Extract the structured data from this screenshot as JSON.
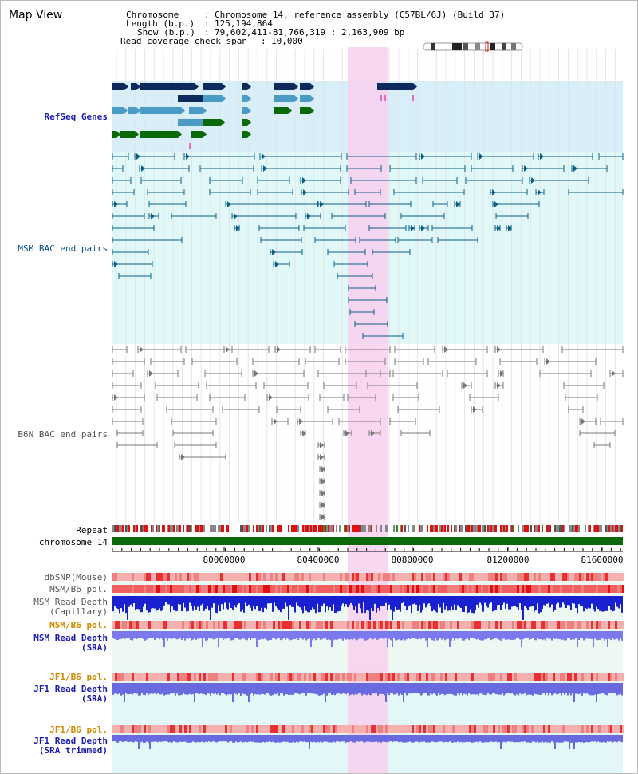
{
  "view": {
    "title": "Map View",
    "info": {
      "chromosome_key": "Chromosome",
      "chromosome_val": "Chromosome 14, reference assembly (C57BL/6J) (Build 37)",
      "length_key": "Length (b.p.)",
      "length_val": "125,194,864",
      "show_key": "Show (b.p.)",
      "show_val": "79,602,411-81,766,319 : 2,163,909 bp",
      "span_key": "Read coverage check span",
      "span_val": "10,000"
    }
  },
  "tracks": {
    "refseq": "RefSeq Genes",
    "msm_bac": "MSM BAC end pairs",
    "b6n_bac": "B6N BAC end pairs",
    "repeat": "Repeat",
    "chromosome": "chromosome 14",
    "dbsnp": "dbSNP(Mouse)",
    "msm_pol1": "MSM/B6 pol.",
    "msm_depth_cap_1": "MSM Read Depth",
    "msm_depth_cap_2": "(Capillary)",
    "msm_pol2": "MSM/B6 pol.",
    "msm_depth_sra_1": "MSM Read Depth",
    "msm_depth_sra_2": "(SRA)",
    "jf1_pol1": "JF1/B6 pol.",
    "jf1_depth_sra_1": "JF1 Read Depth",
    "jf1_depth_sra_2": "(SRA)",
    "jf1_pol2": "JF1/B6 pol.",
    "jf1_depth_trim_1": "JF1 Read Depth",
    "jf1_depth_trim_2": "(SRA trimmed)"
  },
  "axis": {
    "ticks": [
      "80000000",
      "80400000",
      "80800000",
      "81200000",
      "81600000"
    ]
  },
  "colors": {
    "highlight": "#f8d0ee",
    "refseq_bg": "#d8effa",
    "msm_bg": "#e0f8f8",
    "navy": "#0e2a5c",
    "lightblue": "#4a9bc6",
    "green": "#0a6a0a",
    "chrom_green": "#0a6a0a"
  }
}
